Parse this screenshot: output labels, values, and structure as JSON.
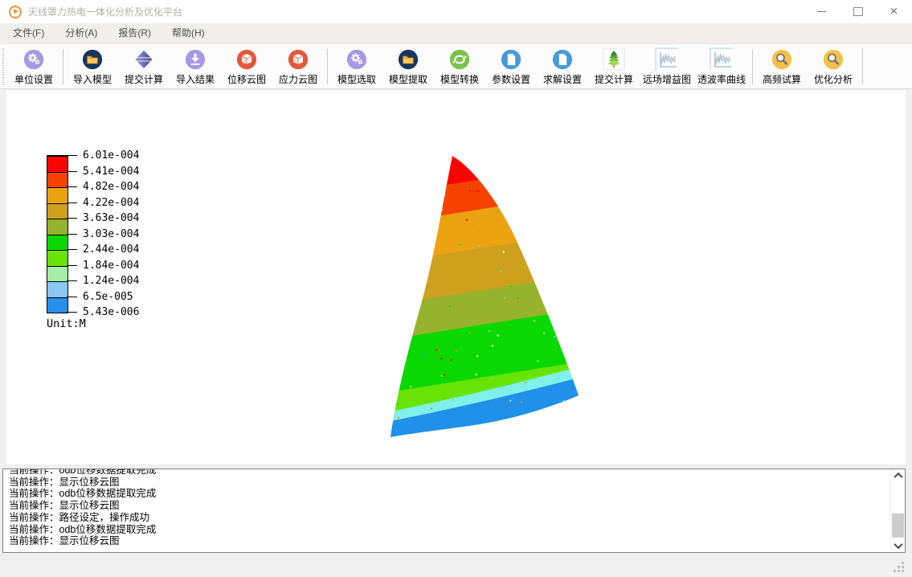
{
  "window": {
    "title": "天线罩力热电一体化分析及优化平台"
  },
  "menu": {
    "items": [
      {
        "label": "文件(F)"
      },
      {
        "label": "分析(A)"
      },
      {
        "label": "报告(R)"
      },
      {
        "label": "帮助(H)"
      }
    ]
  },
  "toolbar": {
    "items": [
      {
        "label": "单位设置",
        "icon": "gear-icon"
      },
      {
        "label": "导入模型",
        "icon": "folder-icon"
      },
      {
        "label": "提交计算",
        "icon": "diamond-spinner-icon"
      },
      {
        "label": "导入结果",
        "icon": "download-icon"
      },
      {
        "label": "位移云图",
        "icon": "cube-icon"
      },
      {
        "label": "应力云图",
        "icon": "cube-icon"
      },
      {
        "label": "模型选取",
        "icon": "gear-icon"
      },
      {
        "label": "模型提取",
        "icon": "folder-icon"
      },
      {
        "label": "模型转换",
        "icon": "sync-icon"
      },
      {
        "label": "参数设置",
        "icon": "document-icon"
      },
      {
        "label": "求解设置",
        "icon": "document-icon"
      },
      {
        "label": "提交计算",
        "icon": "tree-icon"
      },
      {
        "label": "远场增益图",
        "icon": "waveform-chart-icon"
      },
      {
        "label": "透波率曲线",
        "icon": "waveform-chart-icon"
      },
      {
        "label": "高频试算",
        "icon": "magnifier-icon"
      },
      {
        "label": "优化分析",
        "icon": "magnifier-icon"
      }
    ]
  },
  "legend": {
    "values": [
      "6.01e-004",
      "5.41e-004",
      "4.82e-004",
      "4.22e-004",
      "3.63e-004",
      "3.03e-004",
      "2.44e-004",
      "1.84e-004",
      "1.24e-004",
      "6.5e-005",
      "5.43e-006"
    ],
    "colors": [
      "#fa0400",
      "#f54200",
      "#eca312",
      "#cda11e",
      "#97b32e",
      "#0ad802",
      "#67e405",
      "#a5eda5",
      "#8ac8f2",
      "#2a8fe8"
    ],
    "unit": "Unit:M",
    "cyan_band_color": "#7ff0ea",
    "base_blue_color": "#2090e8"
  },
  "log": {
    "lines": [
      "当前操作：odb位移数据提取完成",
      "当前操作：显示位移云图",
      "当前操作：odb位移数据提取完成",
      "当前操作：显示位移云图",
      "当前操作：路径设定，操作成功",
      "当前操作：odb位移数据提取完成",
      "当前操作：显示位移云图"
    ]
  }
}
